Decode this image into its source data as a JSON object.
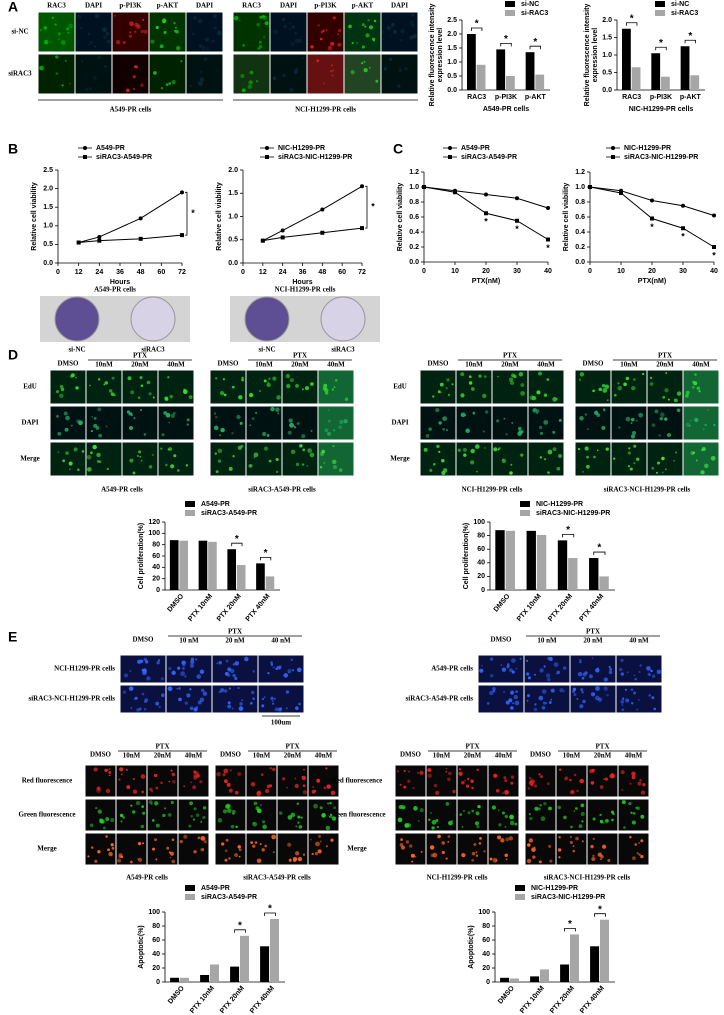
{
  "panels": [
    "A",
    "B",
    "C",
    "D",
    "E"
  ],
  "panel_a": {
    "columns": [
      [
        "RAC3",
        "DAPI",
        "p-PI3K",
        "p-AKT",
        "DAPI"
      ],
      [
        "RAC3",
        "DAPI",
        "p-PI3K",
        "p-AKT",
        "DAPI"
      ]
    ],
    "rows": [
      "si-NC",
      "siRAC3"
    ],
    "captions": [
      "A549-PR cells",
      "NCI-H1299-PR cells"
    ]
  },
  "panel_b": {
    "captions": [
      "A549-PR cells",
      "NCI-H1299-PR cells"
    ],
    "plates": [
      [
        "si-NC",
        "siRAC3"
      ],
      [
        "si-NC",
        "siRAC3"
      ]
    ]
  },
  "panel_d": {
    "groups": [
      {
        "headers": [
          "DMSO",
          "PTX",
          "10nM",
          "20nM",
          "40nM"
        ],
        "caption": "A549-PR cells"
      },
      {
        "headers": [
          "DMSO",
          "PTX",
          "10nM",
          "20nM",
          "40nM"
        ],
        "caption": "siRAC3-A549-PR cells"
      },
      {
        "headers": [
          "DMSO",
          "PTX",
          "10nM",
          "20nM",
          "40nM"
        ],
        "caption": "NCI-H1299-PR cells"
      },
      {
        "headers": [
          "DMSO",
          "PTX",
          "10nM",
          "20nM",
          "40nM"
        ],
        "caption": "siRAC3-NCI-H1299-PR cells"
      }
    ],
    "rows": [
      "EdU",
      "DAPI",
      "Merge"
    ]
  },
  "panel_e": {
    "top_groups": [
      {
        "headers": [
          "DMSO",
          "PTX",
          "10 nM",
          "20 nM",
          "40 nM"
        ],
        "rows": [
          "NCI-H1299-PR cells",
          "siRAC3-NCI-H1299-PR cells"
        ]
      },
      {
        "headers": [
          "DMSO",
          "PTX",
          "10 nM",
          "20 nM",
          "40 nM"
        ],
        "rows": [
          "A549-PR cells",
          "siRAC3-A549-PR cells"
        ]
      }
    ],
    "scale_bar": "100um",
    "groups": [
      {
        "headers": [
          "DMSO",
          "PTX",
          "10nM",
          "20nM",
          "40nM"
        ],
        "caption": "A549-PR cells"
      },
      {
        "headers": [
          "DMSO",
          "PTX",
          "10nM",
          "20nM",
          "40nM"
        ],
        "caption": "siRAC3-A549-PR cells"
      },
      {
        "headers": [
          "DMSO",
          "PTX",
          "10nM",
          "20nM",
          "40nM"
        ],
        "caption": "NCI-H1299-PR cells"
      },
      {
        "headers": [
          "DMSO",
          "PTX",
          "10nM",
          "20nM",
          "40nM"
        ],
        "caption": "siRAC3-NCI-H1299-PR cells"
      }
    ],
    "rows": [
      "Red fluorescence",
      "Green fluorescence",
      "Merge"
    ]
  },
  "chart_data": [
    {
      "type": "bar",
      "categories": [
        "RAC3",
        "p-PI3K",
        "p-AKT"
      ],
      "series": [
        {
          "name": "si-NC",
          "color": "#000000",
          "values": [
            2.0,
            1.45,
            1.35
          ]
        },
        {
          "name": "si-RAC3",
          "color": "#a6a6a6",
          "values": [
            0.9,
            0.5,
            0.55
          ]
        }
      ],
      "ylabel": [
        "Relative fluorescence intensity",
        "expression level"
      ],
      "xlabel": "A549-PR cells",
      "ylim": [
        0,
        2.5
      ],
      "yticks": [
        {
          "value": 0,
          "label": "0.0"
        },
        0.5,
        {
          "value": 1,
          "label": "1.0"
        },
        1.5,
        {
          "value": 2,
          "label": "2.0"
        },
        2.5
      ],
      "annotations": [
        "*",
        "*",
        "*"
      ]
    },
    {
      "type": "bar",
      "categories": [
        "RAC3",
        "p-PI3K",
        "p-AKT"
      ],
      "series": [
        {
          "name": "si-NC",
          "color": "#000000",
          "values": [
            1.75,
            1.05,
            1.25
          ]
        },
        {
          "name": "si-RAC3",
          "color": "#a6a6a6",
          "values": [
            0.65,
            0.38,
            0.42
          ]
        }
      ],
      "ylabel": [
        "Relative fluorescence intensity",
        "expression level"
      ],
      "xlabel": "NIC-H1299-PR cells",
      "ylim": [
        0,
        2.0
      ],
      "yticks": [
        {
          "value": 0,
          "label": "0.0"
        },
        0.5,
        {
          "value": 1,
          "label": "1.0"
        },
        1.5,
        {
          "value": 2,
          "label": "2.0"
        }
      ],
      "annotations": [
        "*",
        "*",
        "*"
      ]
    },
    {
      "type": "line",
      "x": [
        12,
        24,
        48,
        72
      ],
      "series": [
        {
          "name": "A549-PR",
          "color": "#000000",
          "values": [
            0.55,
            0.7,
            1.2,
            1.9
          ]
        },
        {
          "name": "siRAC3-A549-PR",
          "color": "#000000",
          "values": [
            0.55,
            0.6,
            0.65,
            0.75
          ]
        }
      ],
      "ylabel": "Relative cell viability",
      "xlabel": "Hours",
      "xlim": [
        0,
        72
      ],
      "xticks": [
        0,
        12,
        24,
        36,
        48,
        60,
        72
      ],
      "ylim": [
        0,
        2.5
      ],
      "yticks": [
        {
          "value": 0,
          "label": "0.0"
        },
        0.5,
        {
          "value": 1,
          "label": "1.0"
        },
        1.5,
        {
          "value": 2,
          "label": "2.0"
        },
        2.5
      ],
      "annotation": "*"
    },
    {
      "type": "line",
      "x": [
        12,
        24,
        48,
        72
      ],
      "series": [
        {
          "name": "NIC-H1299-PR",
          "color": "#000000",
          "values": [
            0.48,
            0.7,
            1.15,
            1.65
          ]
        },
        {
          "name": "siRAC3-NIC-H1299-PR",
          "color": "#000000",
          "values": [
            0.48,
            0.55,
            0.65,
            0.75
          ]
        }
      ],
      "ylabel": "Relative cell viability",
      "xlabel": "Hours",
      "xlim": [
        0,
        72
      ],
      "xticks": [
        0,
        12,
        24,
        36,
        48,
        60,
        72
      ],
      "ylim": [
        0,
        2.0
      ],
      "yticks": [
        {
          "value": 0,
          "label": "0.0"
        },
        0.5,
        {
          "value": 1,
          "label": "1.0"
        },
        1.5,
        {
          "value": 2,
          "label": "2.0"
        }
      ],
      "annotation": "*"
    },
    {
      "type": "line",
      "x": [
        0,
        10,
        20,
        30,
        40
      ],
      "series": [
        {
          "name": "A549-PR",
          "color": "#000000",
          "values": [
            1.0,
            0.95,
            0.9,
            0.85,
            0.72
          ]
        },
        {
          "name": "siRAC3-A549-PR",
          "color": "#000000",
          "values": [
            1.0,
            0.93,
            0.65,
            0.55,
            0.3
          ]
        }
      ],
      "ylabel": "Relative cell viability",
      "xlabel": "PTX(nM)",
      "xlim": [
        0,
        40
      ],
      "xticks": [
        0,
        10,
        20,
        30,
        40
      ],
      "ylim": [
        0,
        1.2
      ],
      "yticks": [
        {
          "value": 0,
          "label": "0.0"
        },
        0.2,
        0.4,
        0.6,
        0.8,
        {
          "value": 1,
          "label": "1.0"
        },
        1.2
      ],
      "annotations": [
        null,
        null,
        "*",
        "*",
        "*"
      ]
    },
    {
      "type": "line",
      "x": [
        0,
        10,
        20,
        30,
        40
      ],
      "series": [
        {
          "name": "NIC-H1299-PR",
          "color": "#000000",
          "values": [
            1.0,
            0.95,
            0.82,
            0.75,
            0.62
          ]
        },
        {
          "name": "siRAC3-NIC-H1299-PR",
          "color": "#000000",
          "values": [
            1.0,
            0.92,
            0.58,
            0.45,
            0.2
          ]
        }
      ],
      "ylabel": "Relative cell viability",
      "xlabel": "PTX(nM)",
      "xlim": [
        0,
        40
      ],
      "xticks": [
        0,
        10,
        20,
        30,
        40
      ],
      "ylim": [
        0,
        1.2
      ],
      "yticks": [
        {
          "value": 0,
          "label": "0.0"
        },
        0.2,
        0.4,
        0.6,
        0.8,
        {
          "value": 1,
          "label": "1.0"
        },
        1.2
      ],
      "annotations": [
        null,
        null,
        "*",
        "*",
        "*"
      ]
    },
    {
      "type": "bar",
      "categories": [
        "DMSO",
        "PTX 10nM",
        "PTX 20nM",
        "PTX 40nM"
      ],
      "series": [
        {
          "name": "A549-PR",
          "color": "#000000",
          "values": [
            88,
            87,
            72,
            47
          ]
        },
        {
          "name": "siRAC3-A549-PR",
          "color": "#a6a6a6",
          "values": [
            87,
            85,
            44,
            24
          ]
        }
      ],
      "ylabel": "Cell proliferation(%)",
      "ylim": [
        0,
        120
      ],
      "yticks": [
        0,
        20,
        40,
        60,
        80,
        100,
        120
      ],
      "annotations": [
        null,
        null,
        "*",
        "*"
      ]
    },
    {
      "type": "bar",
      "categories": [
        "DMSO",
        "PTX 10nM",
        "PTX 20nM",
        "PTX 40nM"
      ],
      "series": [
        {
          "name": "NIC-H1299-PR",
          "color": "#000000",
          "values": [
            88,
            87,
            73,
            47
          ]
        },
        {
          "name": "siRAC3-NIC-H1299-PR",
          "color": "#a6a6a6",
          "values": [
            87,
            81,
            47,
            20
          ]
        }
      ],
      "ylabel": "Cell proliferation(%)",
      "ylim": [
        0,
        100
      ],
      "yticks": [
        0,
        20,
        40,
        60,
        80,
        100
      ],
      "annotations": [
        null,
        null,
        "*",
        "*"
      ]
    },
    {
      "type": "bar",
      "categories": [
        "DMSO",
        "PTX 10nM",
        "PTX 20nM",
        "PTX 40nM"
      ],
      "series": [
        {
          "name": "A549-PR",
          "color": "#000000",
          "values": [
            6,
            10,
            22,
            51
          ]
        },
        {
          "name": "siRAC3-A549-PR",
          "color": "#a6a6a6",
          "values": [
            6,
            25,
            66,
            90
          ]
        }
      ],
      "ylabel": "Apoptotic(%)",
      "ylim": [
        0,
        100
      ],
      "yticks": [
        0,
        20,
        40,
        60,
        80,
        100
      ],
      "annotations": [
        null,
        null,
        "*",
        "*"
      ]
    },
    {
      "type": "bar",
      "categories": [
        "DMSO",
        "PTX 10nM",
        "PTX 20nM",
        "PTX 40nM"
      ],
      "series": [
        {
          "name": "NIC-H1299-PR",
          "color": "#000000",
          "values": [
            6,
            8,
            25,
            51
          ]
        },
        {
          "name": "siRAC3-NIC-H1299-PR",
          "color": "#a6a6a6",
          "values": [
            5,
            18,
            68,
            89
          ]
        }
      ],
      "ylabel": "Apoptotic(%)",
      "ylim": [
        0,
        100
      ],
      "yticks": [
        0,
        20,
        40,
        60,
        80,
        100
      ],
      "annotations": [
        null,
        null,
        "*",
        "*"
      ]
    }
  ]
}
